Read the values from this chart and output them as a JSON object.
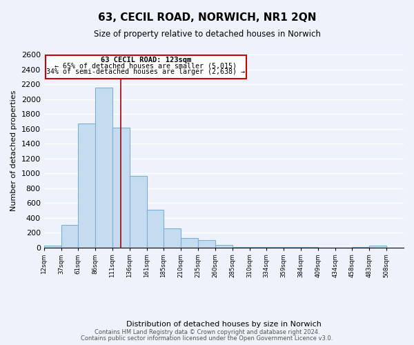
{
  "title": "63, CECIL ROAD, NORWICH, NR1 2QN",
  "subtitle": "Size of property relative to detached houses in Norwich",
  "xlabel": "Distribution of detached houses by size in Norwich",
  "ylabel": "Number of detached properties",
  "bar_left_edges": [
    12,
    37,
    61,
    86,
    111,
    136,
    161,
    185,
    210,
    235,
    260,
    285,
    310,
    334,
    359,
    384,
    409,
    434,
    458,
    483
  ],
  "bar_heights": [
    20,
    300,
    1670,
    2150,
    1610,
    960,
    510,
    255,
    125,
    95,
    30,
    10,
    10,
    5,
    5,
    5,
    0,
    0,
    5,
    20
  ],
  "bar_widths": [
    25,
    24,
    25,
    25,
    25,
    25,
    24,
    25,
    25,
    25,
    25,
    25,
    24,
    25,
    25,
    25,
    25,
    24,
    25,
    25
  ],
  "bar_color": "#c5dcf0",
  "bar_edge_color": "#7ab0d4",
  "property_line_x": 123,
  "property_line_color": "#aa0000",
  "annotation_title": "63 CECIL ROAD: 123sqm",
  "annotation_line1": "← 65% of detached houses are smaller (5,015)",
  "annotation_line2": "34% of semi-detached houses are larger (2,638) →",
  "annotation_box_color": "#ffffff",
  "annotation_box_edge_color": "#cc0000",
  "tick_labels": [
    "12sqm",
    "37sqm",
    "61sqm",
    "86sqm",
    "111sqm",
    "136sqm",
    "161sqm",
    "185sqm",
    "210sqm",
    "235sqm",
    "260sqm",
    "285sqm",
    "310sqm",
    "334sqm",
    "359sqm",
    "384sqm",
    "409sqm",
    "434sqm",
    "458sqm",
    "483sqm",
    "508sqm"
  ],
  "ylim": [
    0,
    2600
  ],
  "yticks": [
    0,
    200,
    400,
    600,
    800,
    1000,
    1200,
    1400,
    1600,
    1800,
    2000,
    2200,
    2400,
    2600
  ],
  "footer_line1": "Contains HM Land Registry data © Crown copyright and database right 2024.",
  "footer_line2": "Contains public sector information licensed under the Open Government Licence v3.0.",
  "background_color": "#eef2fb"
}
